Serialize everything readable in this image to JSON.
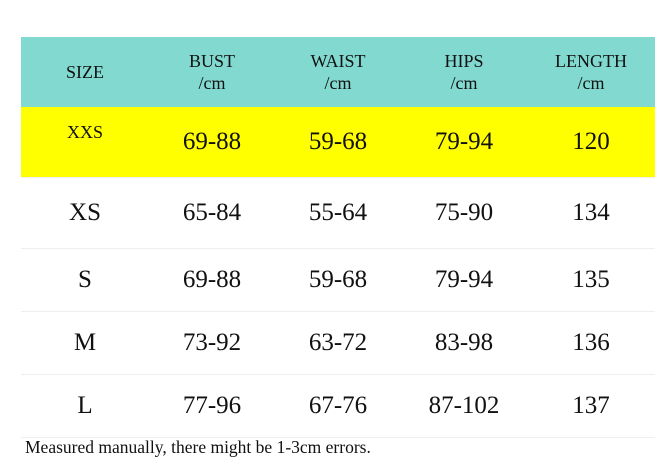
{
  "table": {
    "header_color": "#82d9d0",
    "highlight_color": "#ffff00",
    "headers": [
      {
        "line1": "SIZE",
        "line2": ""
      },
      {
        "line1": "BUST",
        "line2": "/cm"
      },
      {
        "line1": "WAIST",
        "line2": "/cm"
      },
      {
        "line1": "HIPS",
        "line2": "/cm"
      },
      {
        "line1": "LENGTH",
        "line2": "/cm"
      }
    ],
    "rows": [
      [
        "XXS",
        "69-88",
        "59-68",
        "79-94",
        "120"
      ],
      [
        "XS",
        "65-84",
        "55-64",
        "75-90",
        "134"
      ],
      [
        "S",
        "69-88",
        "59-68",
        "79-94",
        "135"
      ],
      [
        "M",
        "73-92",
        "63-72",
        "83-98",
        "136"
      ],
      [
        "L",
        "77-96",
        "67-76",
        "87-102",
        "137"
      ]
    ]
  },
  "note": "Measured manually, there might be 1-3cm errors."
}
